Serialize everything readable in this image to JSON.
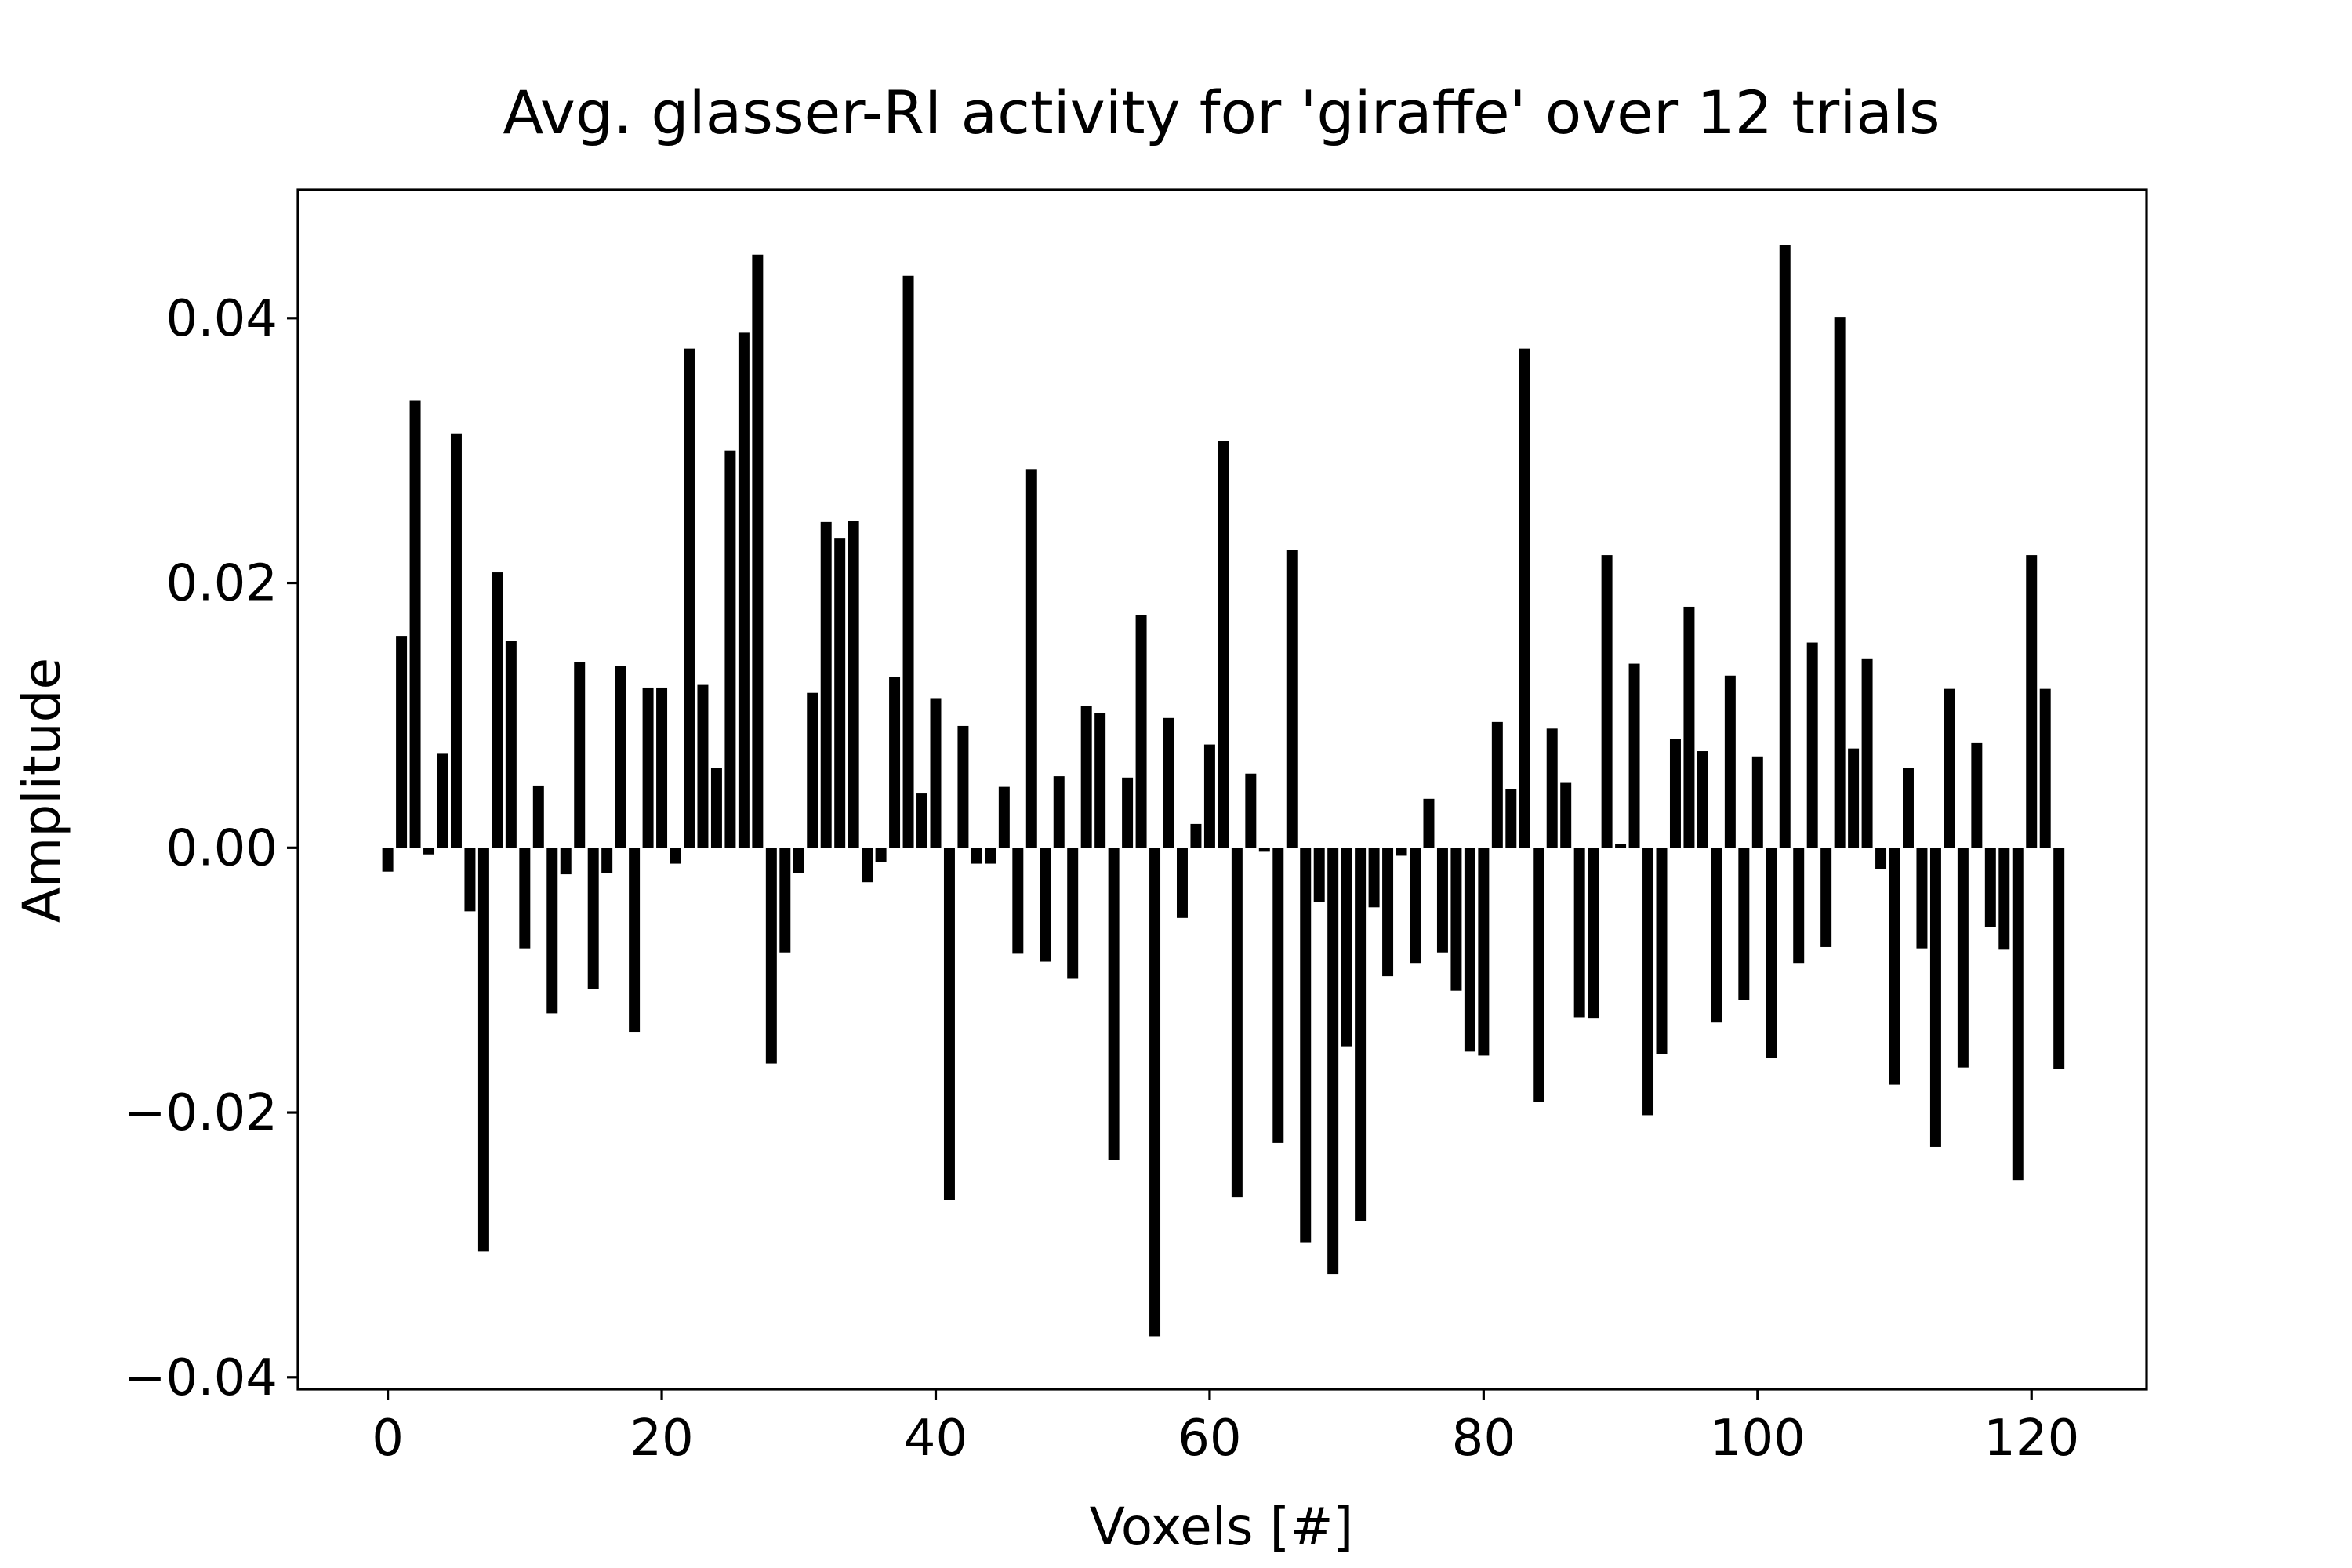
{
  "chart_data": {
    "type": "bar",
    "title": "Avg. glasser-RI activity for 'giraffe' over 12 trials",
    "xlabel": "Voxels [#]",
    "ylabel": "Amplitude",
    "color": "#000000",
    "x": [
      0,
      1,
      2,
      3,
      4,
      5,
      6,
      7,
      8,
      9,
      10,
      11,
      12,
      13,
      14,
      15,
      16,
      17,
      18,
      19,
      20,
      21,
      22,
      23,
      24,
      25,
      26,
      27,
      28,
      29,
      30,
      31,
      32,
      33,
      34,
      35,
      36,
      37,
      38,
      39,
      40,
      41,
      42,
      43,
      44,
      45,
      46,
      47,
      48,
      49,
      50,
      51,
      52,
      53,
      54,
      55,
      56,
      57,
      58,
      59,
      60,
      61,
      62,
      63,
      64,
      65,
      66,
      67,
      68,
      69,
      70,
      71,
      72,
      73,
      74,
      75,
      76,
      77,
      78,
      79,
      80,
      81,
      82,
      83,
      84,
      85,
      86,
      87,
      88,
      89,
      90,
      91,
      92,
      93,
      94,
      95,
      96,
      97,
      98,
      99,
      100,
      101,
      102,
      103,
      104,
      105,
      106,
      107,
      108,
      109,
      110,
      111,
      112,
      113,
      114,
      115,
      116,
      117,
      118,
      119,
      120,
      121,
      122
    ],
    "values": [
      -0.0018,
      0.016,
      0.0338,
      -0.0005,
      0.0071,
      0.0313,
      -0.0048,
      -0.0305,
      0.0208,
      0.0156,
      -0.0076,
      0.0047,
      -0.0125,
      -0.002,
      0.014,
      -0.0107,
      -0.0019,
      0.0137,
      -0.0139,
      0.0121,
      0.0121,
      -0.0012,
      0.0377,
      0.0123,
      0.006,
      0.03,
      0.0389,
      0.0448,
      -0.0163,
      -0.0079,
      -0.0019,
      0.0117,
      0.0246,
      0.0234,
      0.0247,
      -0.0026,
      -0.0011,
      0.0129,
      0.0432,
      0.0041,
      0.0113,
      -0.0266,
      0.0092,
      -0.0012,
      -0.0012,
      0.0046,
      -0.008,
      0.0286,
      -0.0086,
      0.0054,
      -0.0099,
      0.0107,
      0.0102,
      -0.0236,
      0.0053,
      0.0176,
      -0.0369,
      0.0098,
      -0.0053,
      0.0018,
      0.0078,
      0.0307,
      -0.0264,
      0.0056,
      -0.0003,
      -0.0223,
      0.0225,
      -0.0298,
      -0.0041,
      -0.0322,
      -0.015,
      -0.0282,
      -0.0045,
      -0.0097,
      -0.0006,
      -0.0087,
      0.0037,
      -0.0079,
      -0.0108,
      -0.0154,
      -0.0157,
      0.0095,
      0.0044,
      0.0377,
      -0.0192,
      0.009,
      0.0049,
      -0.0128,
      -0.0129,
      0.0221,
      0.0003,
      0.0139,
      -0.0202,
      -0.0156,
      0.0082,
      0.0182,
      0.0073,
      -0.0132,
      0.013,
      -0.0115,
      0.0069,
      -0.0159,
      0.0455,
      -0.0087,
      0.0155,
      -0.0075,
      0.0401,
      0.0075,
      0.0143,
      -0.0016,
      -0.0179,
      0.006,
      -0.0076,
      -0.0226,
      0.012,
      -0.0166,
      0.0079,
      -0.006,
      -0.0077,
      -0.0251,
      0.0221,
      0.012,
      -0.0167
    ],
    "xlim": [
      -6.56,
      128.4
    ],
    "ylim": [
      -0.0409,
      0.0497
    ],
    "xticks": [
      0,
      20,
      40,
      60,
      80,
      100,
      120
    ],
    "yticks": [
      {
        "value": -0.04,
        "label": "−0.04"
      },
      {
        "value": -0.02,
        "label": "−0.02"
      },
      {
        "value": 0,
        "label": "0.00"
      },
      {
        "value": 0.02,
        "label": "0.02"
      },
      {
        "value": 0.04,
        "label": "0.04"
      }
    ]
  }
}
